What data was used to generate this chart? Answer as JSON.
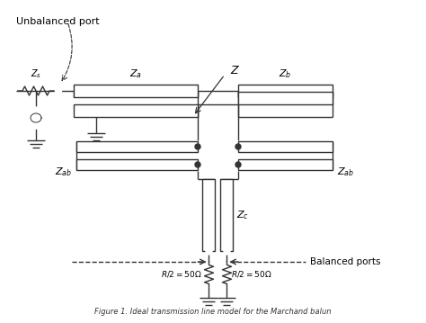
{
  "title": "Figure 1. Ideal transmission line model for the Marchand balun",
  "bg_color": "#ffffff",
  "line_color": "#333333",
  "figsize": [
    4.74,
    3.59
  ],
  "dpi": 100
}
